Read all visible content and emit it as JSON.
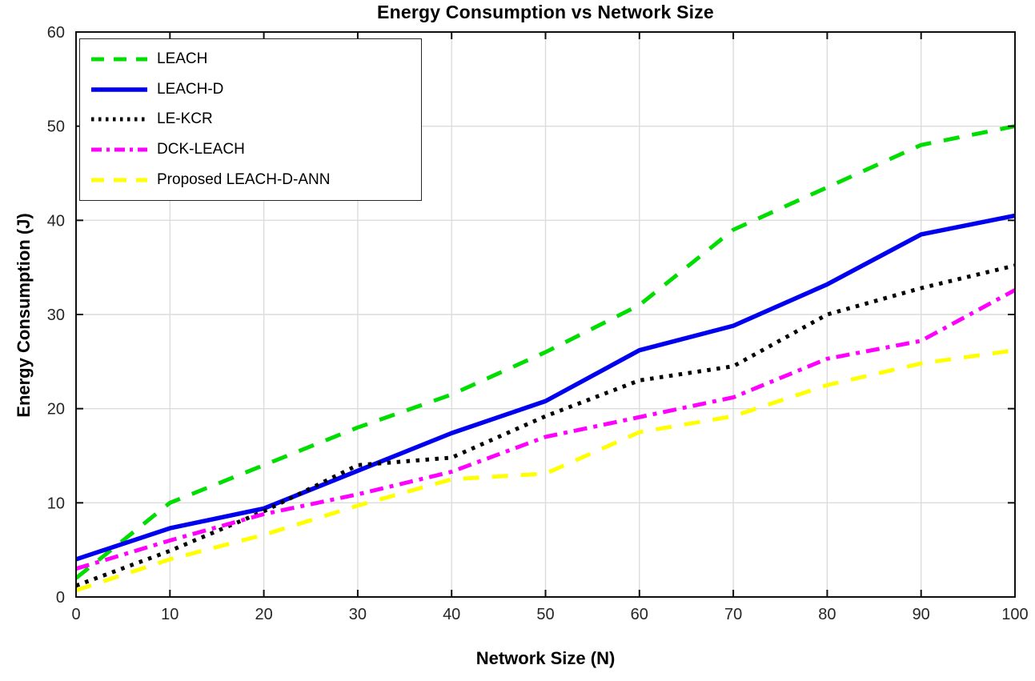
{
  "figure": {
    "background": "#ffffff",
    "axis_color": "#0f0f0f",
    "grid_color": "#dcdcdc",
    "tick_label_color": "#262626"
  },
  "chart_data": {
    "type": "line",
    "title": "Energy Consumption vs Network Size",
    "xlabel": "Network Size (N)",
    "ylabel": "Energy Consumption (J)",
    "xlim": [
      0,
      100
    ],
    "ylim": [
      0,
      60
    ],
    "x_ticks": [
      0,
      10,
      20,
      30,
      40,
      50,
      60,
      70,
      80,
      90,
      100
    ],
    "y_ticks": [
      0,
      10,
      20,
      30,
      40,
      50,
      60
    ],
    "grid": true,
    "legend_position": "top-left",
    "x": [
      0,
      10,
      20,
      30,
      40,
      50,
      60,
      70,
      80,
      90,
      100
    ],
    "series": [
      {
        "name": "LEACH",
        "color": "#00dd00",
        "style": "dashed",
        "values": [
          2,
          10,
          14,
          18,
          21.5,
          26,
          31,
          39,
          43.5,
          48,
          50
        ]
      },
      {
        "name": "LEACH-D",
        "color": "#0000ee",
        "style": "solid",
        "values": [
          4,
          7.3,
          9.4,
          13.4,
          17.4,
          20.8,
          26.2,
          28.8,
          33.2,
          38.5,
          40.5
        ]
      },
      {
        "name": "LE-KCR",
        "color": "#000000",
        "style": "dotted",
        "values": [
          1.2,
          4.9,
          9.1,
          14,
          14.8,
          19.2,
          23,
          24.5,
          30,
          32.8,
          35.2
        ]
      },
      {
        "name": "DCK-LEACH",
        "color": "#ff00ff",
        "style": "dashdot",
        "values": [
          3,
          6,
          8.8,
          10.9,
          13.3,
          17,
          19.1,
          21.2,
          25.3,
          27.2,
          32.6
        ]
      },
      {
        "name": "Proposed LEACH-D-ANN",
        "color": "#ffff00",
        "style": "dashed",
        "values": [
          0.7,
          4,
          6.6,
          9.7,
          12.5,
          13.1,
          17.5,
          19.2,
          22.5,
          24.8,
          26.2
        ]
      }
    ]
  }
}
